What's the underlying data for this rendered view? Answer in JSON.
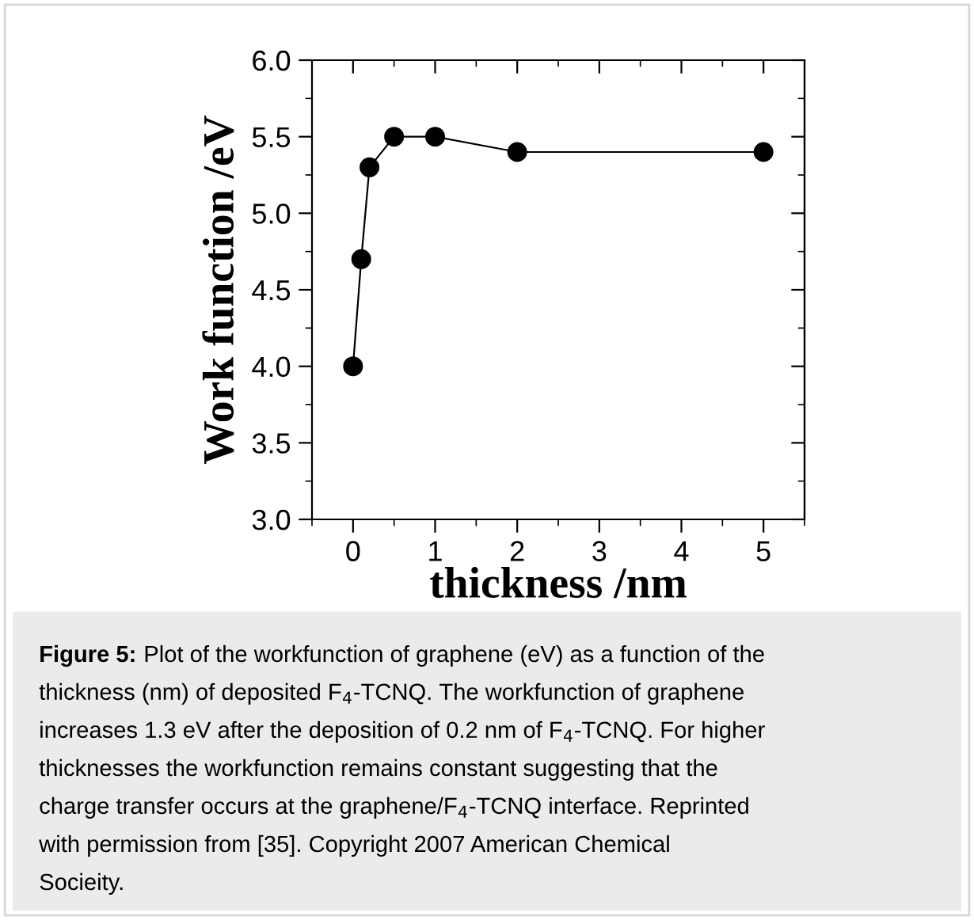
{
  "chart_data": {
    "type": "line",
    "xlabel": "thickness /nm",
    "ylabel": "Work function /eV",
    "x": [
      0,
      0.1,
      0.2,
      0.5,
      1,
      2,
      5
    ],
    "series": [
      {
        "color": "#000000",
        "values": [
          4.0,
          4.7,
          5.3,
          5.5,
          5.5,
          5.4,
          5.4
        ]
      }
    ],
    "marker": "circle",
    "line_style": "solid",
    "grid": false,
    "legend": false,
    "xlim": [
      -0.5,
      5.5
    ],
    "ylim": [
      3.0,
      6.0
    ],
    "xticks": [
      0,
      1,
      2,
      3,
      4,
      5
    ],
    "yticks": [
      {
        "value": 3.0,
        "label": "3.0"
      },
      {
        "value": 3.5,
        "label": "3.5"
      },
      {
        "value": 4.0,
        "label": "4.0"
      },
      {
        "value": 4.5,
        "label": "4.5"
      },
      {
        "value": 5.0,
        "label": "5.0"
      },
      {
        "value": 5.5,
        "label": "5.5"
      },
      {
        "value": 6.0,
        "label": "6.0"
      }
    ],
    "annotations": [
      "Figure 5:",
      " Plot of the workfunction of graphene (eV) as a function of the\nthickness (nm) of deposited F$_{4}$-TCNQ. The workfunction of graphene\nincreases 1.3 eV after the deposition of 0.2 nm of F$_{4}$-TCNQ. For higher\nthicknesses the workfunction remains constant suggesting that the\ncharge transfer occurs at the graphene/F$_{4}$-TCNQ interface. Reprinted\nwith permission from [35]. Copyright 2007 American Chemical\nSocieity."
    ]
  }
}
